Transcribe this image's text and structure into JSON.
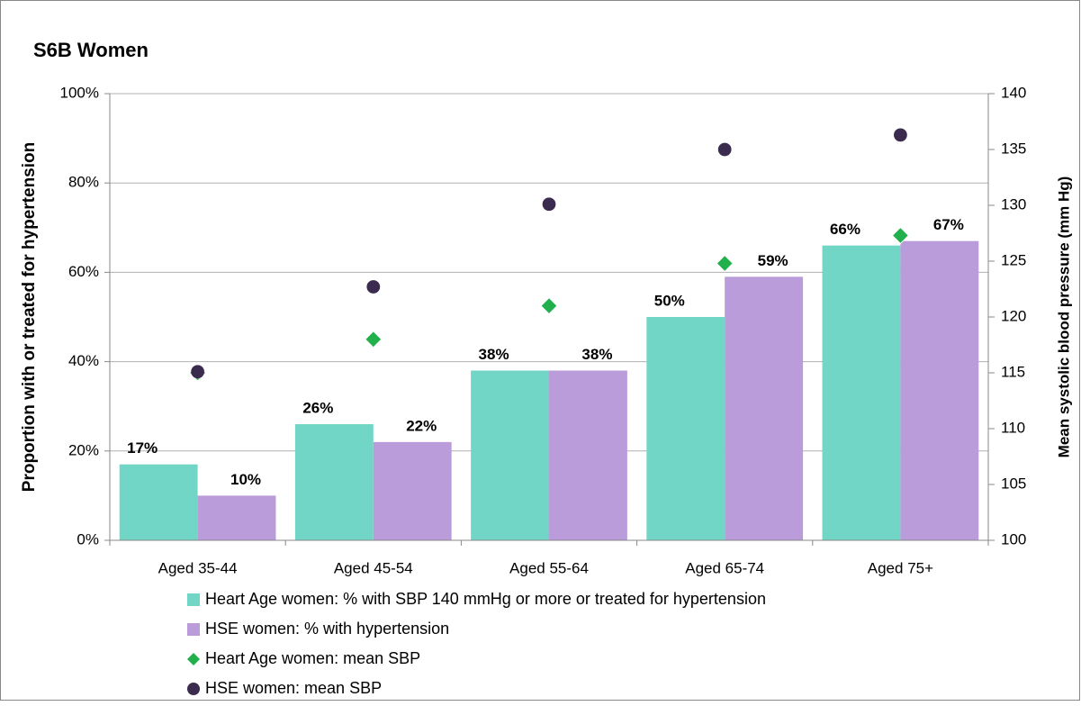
{
  "chart_data": {
    "type": "bar",
    "title": "S6B Women",
    "ylabel": "Proportion with or treated for hypertension",
    "y2label": "Mean systolic blood pressure (mm Hg)",
    "categories": [
      "Aged 35-44",
      "Aged 45-54",
      "Aged 55-64",
      "Aged 65-74",
      "Aged 75+"
    ],
    "series": [
      {
        "name": "Heart Age women: % with SBP 140 mmHg or more or treated for hypertension",
        "type": "bar",
        "color": "#72d6c6",
        "values": [
          17,
          26,
          38,
          50,
          66
        ],
        "value_labels": [
          "17%",
          "26%",
          "38%",
          "50%",
          "66%"
        ]
      },
      {
        "name": "HSE women: % with hypertension",
        "type": "bar",
        "color": "#b99cd9",
        "values": [
          10,
          22,
          38,
          59,
          67
        ],
        "value_labels": [
          "10%",
          "22%",
          "38%",
          "59%",
          "67%"
        ]
      },
      {
        "name": "Heart Age women: mean SBP",
        "type": "scatter",
        "marker": "diamond",
        "axis": "y2",
        "color": "#21b04b",
        "values": [
          115,
          118,
          121,
          124.8,
          127.3
        ]
      },
      {
        "name": "HSE women: mean SBP",
        "type": "scatter",
        "marker": "circle",
        "axis": "y2",
        "color": "#3b2b4e",
        "values": [
          115.1,
          122.7,
          130.1,
          135,
          136.3
        ]
      }
    ],
    "ylim": [
      0,
      100
    ],
    "yticks": [
      {
        "value": 0,
        "label": "0%"
      },
      {
        "value": 20,
        "label": "20%"
      },
      {
        "value": 40,
        "label": "40%"
      },
      {
        "value": 60,
        "label": "60%"
      },
      {
        "value": 80,
        "label": "80%"
      },
      {
        "value": 100,
        "label": "100%"
      }
    ],
    "y2lim": [
      100,
      140
    ],
    "y2ticks": [
      100,
      105,
      110,
      115,
      120,
      125,
      130,
      135,
      140
    ],
    "grid": true,
    "legend": "bottom"
  }
}
